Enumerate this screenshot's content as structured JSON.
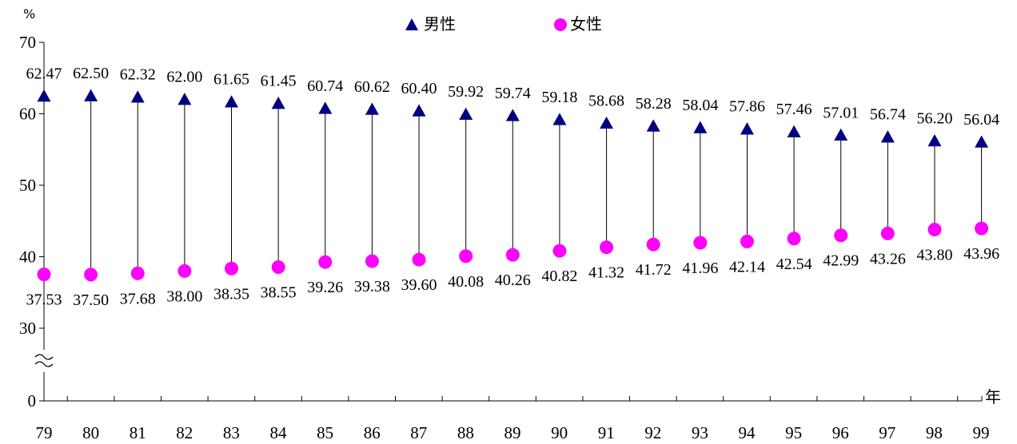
{
  "chart_data": {
    "type": "scatter",
    "y_unit": "%",
    "x_unit": "年",
    "y_ticks": [
      "70",
      "60",
      "50",
      "40",
      "30",
      "0"
    ],
    "axis_break": true,
    "categories": [
      "79",
      "80",
      "81",
      "82",
      "83",
      "84",
      "85",
      "86",
      "87",
      "88",
      "89",
      "90",
      "91",
      "92",
      "93",
      "94",
      "95",
      "96",
      "97",
      "98",
      "99"
    ],
    "legend_position": "top-center",
    "series": [
      {
        "name": "男性",
        "marker": "triangle",
        "color": "#000080",
        "values": [
          62.47,
          62.5,
          62.32,
          62.0,
          61.65,
          61.45,
          60.74,
          60.62,
          60.4,
          59.92,
          59.74,
          59.18,
          58.68,
          58.28,
          58.04,
          57.86,
          57.46,
          57.01,
          56.74,
          56.2,
          56.04
        ],
        "labels": [
          "62.47",
          "62.50",
          "62.32",
          "62.00",
          "61.65",
          "61.45",
          "60.74",
          "60.62",
          "60.40",
          "59.92",
          "59.74",
          "59.18",
          "58.68",
          "58.28",
          "58.04",
          "57.86",
          "57.46",
          "57.01",
          "56.74",
          "56.20",
          "56.04"
        ]
      },
      {
        "name": "女性",
        "marker": "circle",
        "color": "#ff00ff",
        "values": [
          37.53,
          37.5,
          37.68,
          38.0,
          38.35,
          38.55,
          39.26,
          39.38,
          39.6,
          40.08,
          40.26,
          40.82,
          41.32,
          41.72,
          41.96,
          42.14,
          42.54,
          42.99,
          43.26,
          43.8,
          43.96
        ],
        "labels": [
          "37.53",
          "37.50",
          "37.68",
          "38.00",
          "38.35",
          "38.55",
          "39.26",
          "39.38",
          "39.60",
          "40.08",
          "40.26",
          "40.82",
          "41.32",
          "41.72",
          "41.96",
          "42.14",
          "42.54",
          "42.99",
          "43.26",
          "43.80",
          "43.96"
        ]
      }
    ]
  }
}
